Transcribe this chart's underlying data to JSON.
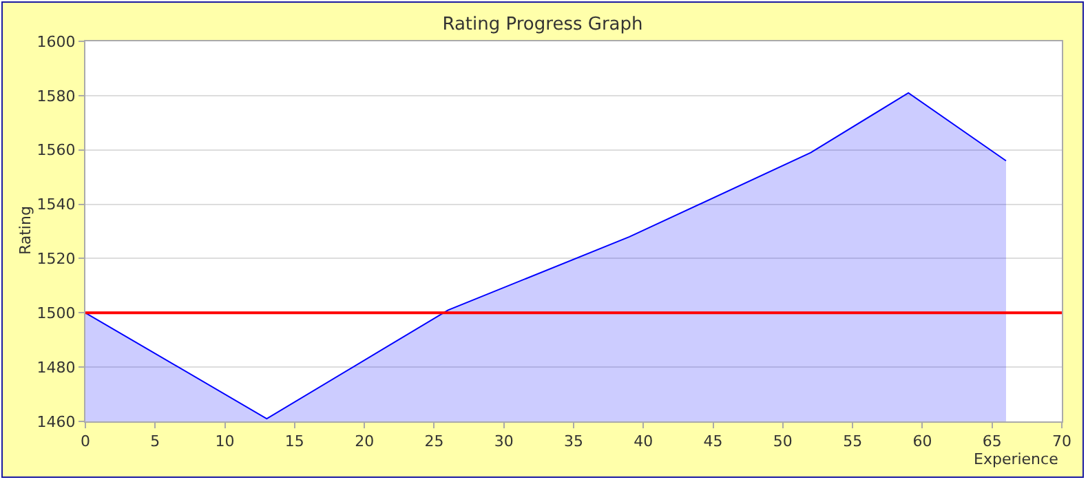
{
  "chart_data": {
    "type": "area",
    "title": "Rating Progress Graph",
    "xlabel": "Experience",
    "ylabel": "Rating",
    "x": [
      0,
      13,
      26,
      39,
      52,
      59,
      66
    ],
    "series": [
      {
        "color": "#0000ff",
        "values": [
          1500,
          1461,
          1501,
          1528,
          1559,
          1581,
          1556
        ]
      }
    ],
    "xlim": [
      0,
      70
    ],
    "xticks": [
      0,
      5,
      10,
      15,
      20,
      25,
      30,
      35,
      40,
      45,
      50,
      55,
      60,
      65,
      70
    ],
    "ylim": [
      1460,
      1600
    ],
    "yticks": [
      1460,
      1480,
      1500,
      1520,
      1540,
      1560,
      1580,
      1600
    ],
    "ref_lines": [
      {
        "axis": "y",
        "value": 1500,
        "color": "#ff0000"
      }
    ],
    "grid": "y",
    "legend": false
  }
}
